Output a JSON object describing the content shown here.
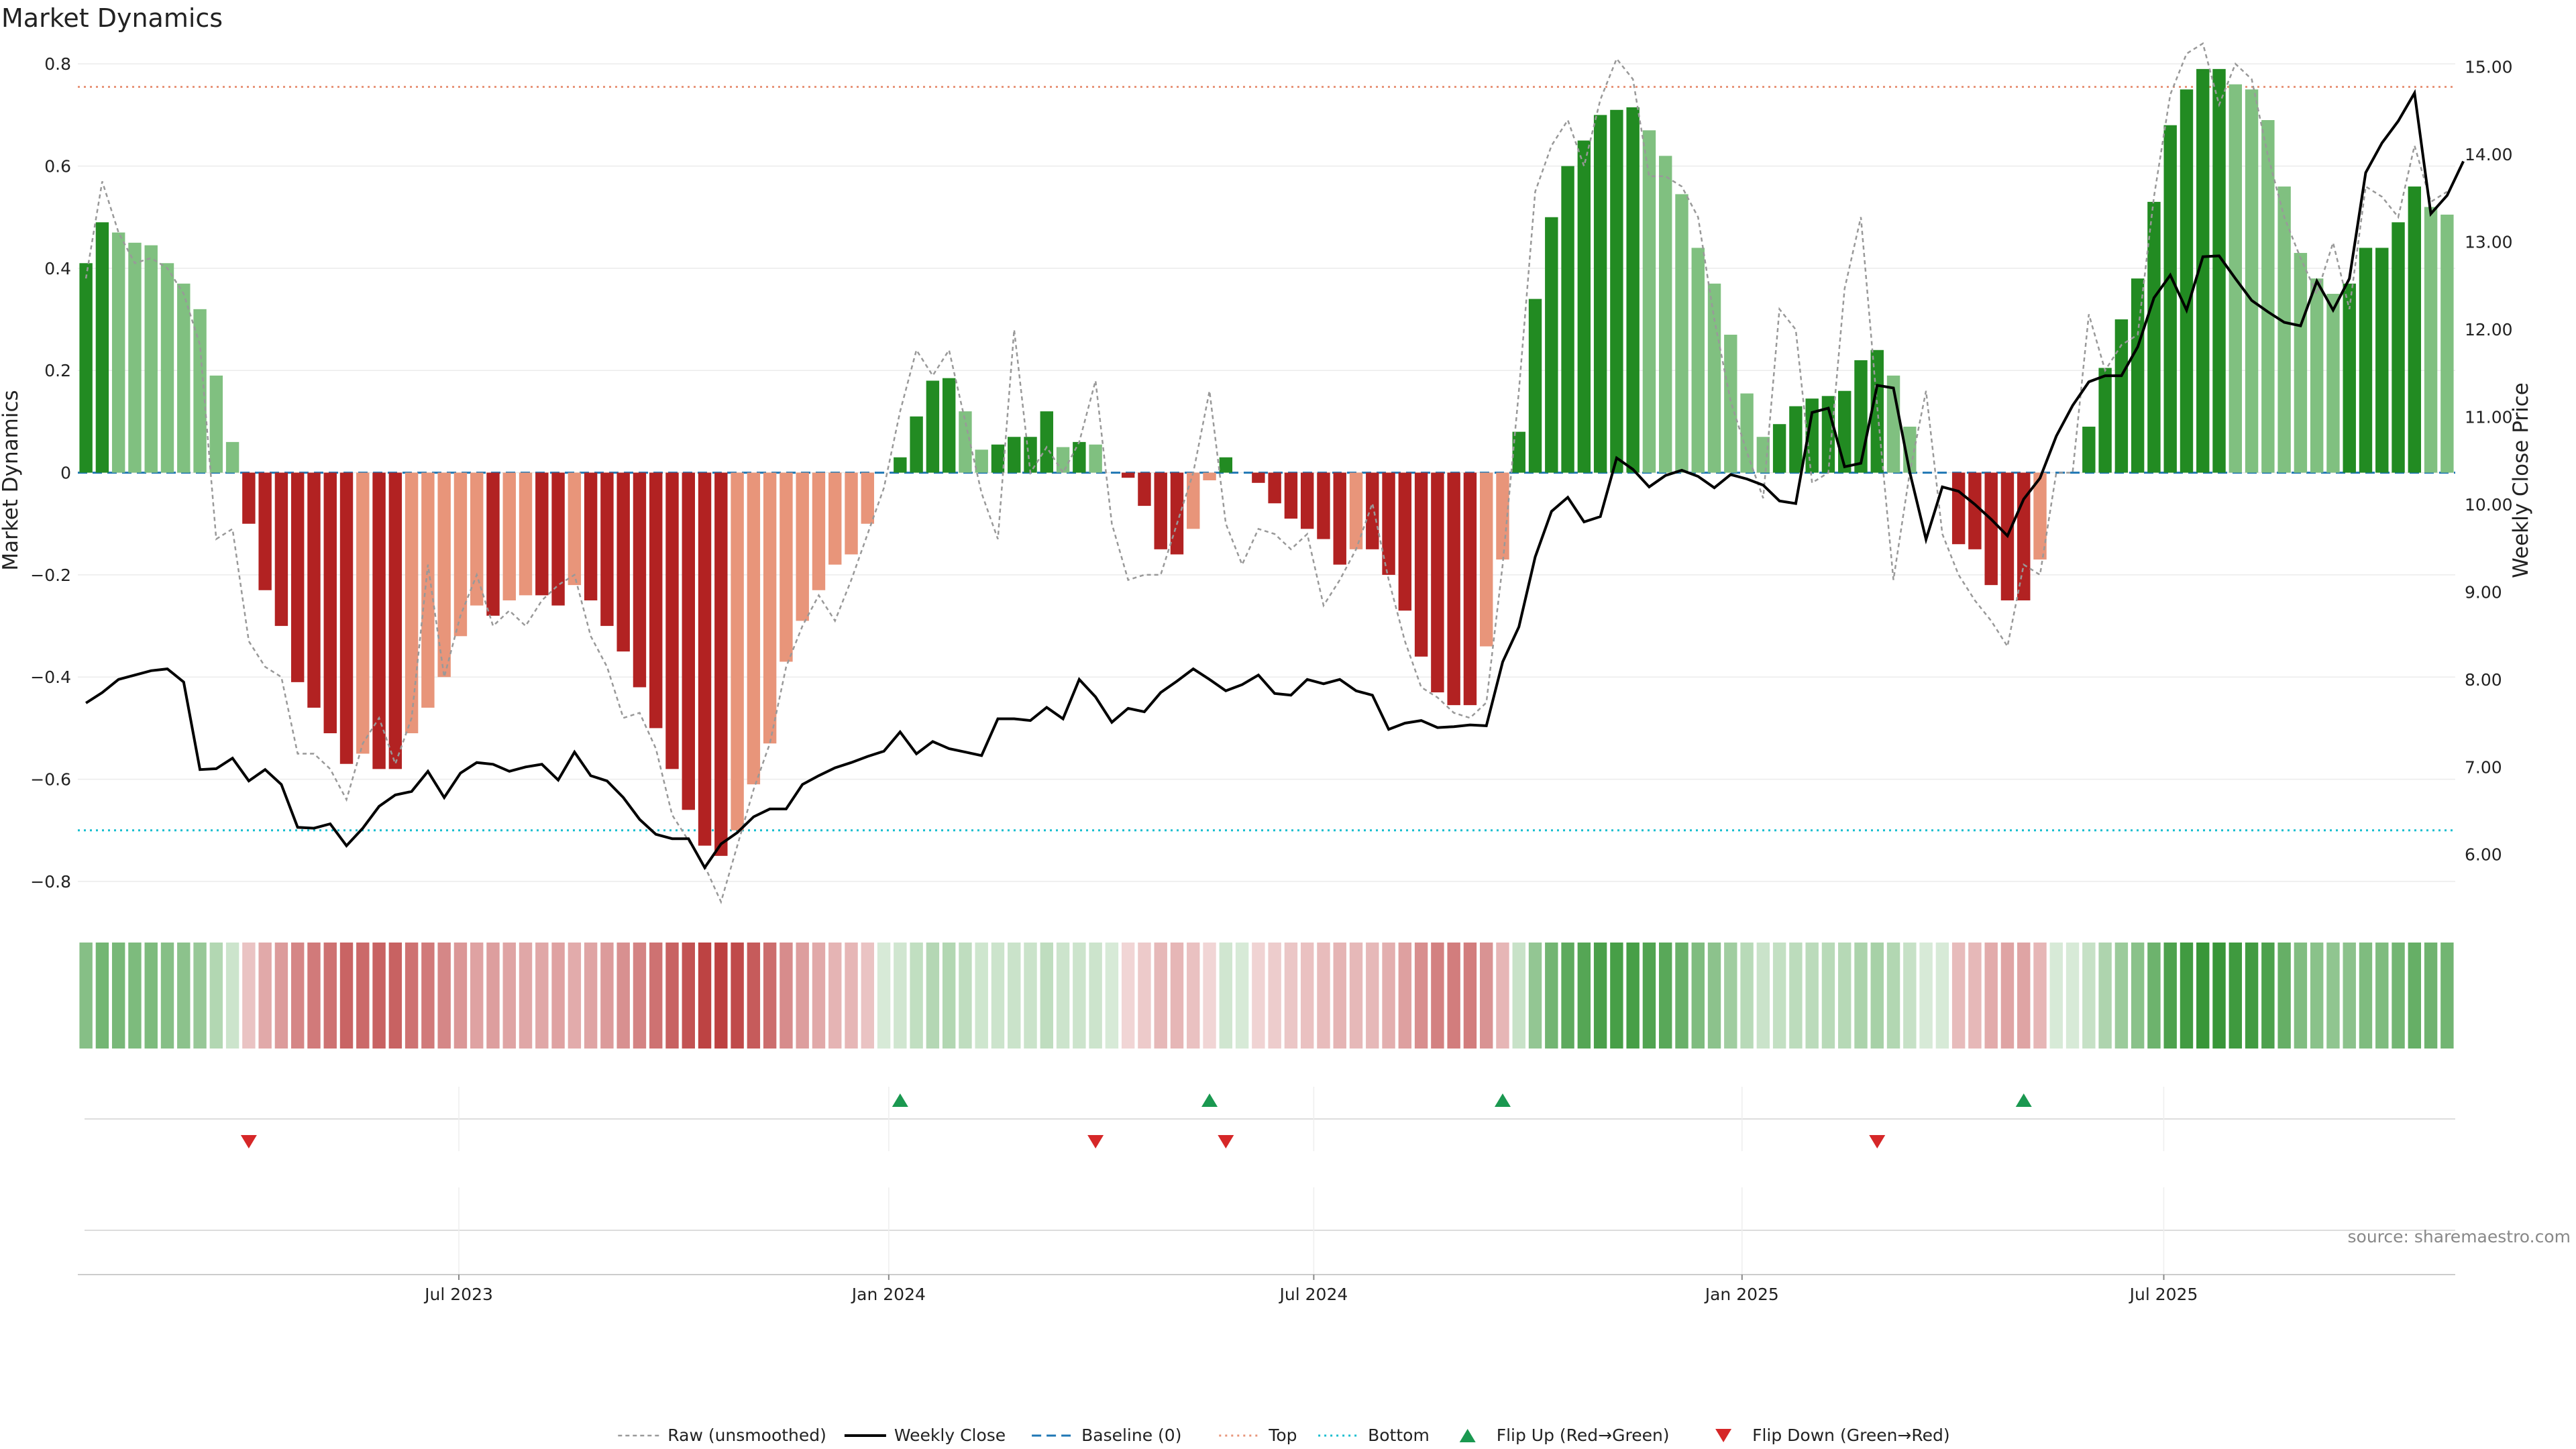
{
  "title": "Market Dynamics",
  "source": "source: sharemaestro.com",
  "colors": {
    "pos_strong": "#228B22",
    "pos_weak": "#80C080",
    "neg_strong": "#B22222",
    "neg_weak": "#E8957A",
    "raw": "#999999",
    "close": "#000000",
    "baseline": "#1f77b4",
    "top": "#e8957a",
    "bottom": "#17becf",
    "flip_up": "#1a9850",
    "flip_down": "#d62728"
  },
  "chart_data": {
    "type": "bar+line",
    "start_date": "2023-01-02",
    "weeks": 146,
    "ylabel_left": "Market Dynamics",
    "ylabel_right": "Weekly Close Price",
    "ylim_left": [
      -0.85,
      0.82
    ],
    "ylim_right": [
      5.4,
      15.15
    ],
    "yticks_left": [
      {
        "v": 0.8,
        "label": "0.8"
      },
      {
        "v": 0.6,
        "label": "0.6"
      },
      {
        "v": 0.4,
        "label": "0.4"
      },
      {
        "v": 0.2,
        "label": "0.2"
      },
      {
        "v": 0,
        "label": "0"
      },
      {
        "v": -0.2,
        "label": "−0.2"
      },
      {
        "v": -0.4,
        "label": "−0.4"
      },
      {
        "v": -0.6,
        "label": "−0.6"
      },
      {
        "v": -0.8,
        "label": "−0.8"
      }
    ],
    "yticks_right": [
      {
        "v": 15,
        "label": "15.00"
      },
      {
        "v": 14,
        "label": "14.00"
      },
      {
        "v": 13,
        "label": "13.00"
      },
      {
        "v": 12,
        "label": "12.00"
      },
      {
        "v": 11,
        "label": "11.00"
      },
      {
        "v": 10,
        "label": "10.00"
      },
      {
        "v": 9,
        "label": "9.00"
      },
      {
        "v": 8,
        "label": "8.00"
      },
      {
        "v": 7,
        "label": "7.00"
      },
      {
        "v": 6,
        "label": "6.00"
      }
    ],
    "xticks": [
      {
        "week": 22.9,
        "label": "Jul 2023"
      },
      {
        "week": 49.3,
        "label": "Jan 2024"
      },
      {
        "week": 75.4,
        "label": "Jul 2024"
      },
      {
        "week": 101.7,
        "label": "Jan 2025"
      },
      {
        "week": 127.6,
        "label": "Jul 2025"
      }
    ],
    "top_level": 0.755,
    "bottom_level": -0.7,
    "baseline": 0,
    "momentum": [
      0.41,
      0.49,
      0.47,
      0.45,
      0.445,
      0.41,
      0.37,
      0.32,
      0.19,
      0.06,
      -0.1,
      -0.23,
      -0.3,
      -0.41,
      -0.46,
      -0.51,
      -0.57,
      -0.55,
      -0.58,
      -0.58,
      -0.51,
      -0.46,
      -0.4,
      -0.32,
      -0.26,
      -0.28,
      -0.25,
      -0.24,
      -0.24,
      -0.26,
      -0.22,
      -0.25,
      -0.3,
      -0.35,
      -0.42,
      -0.5,
      -0.58,
      -0.66,
      -0.73,
      -0.75,
      -0.7,
      -0.61,
      -0.53,
      -0.37,
      -0.29,
      -0.23,
      -0.18,
      -0.16,
      -0.1,
      0.0,
      0.03,
      0.11,
      0.18,
      0.185,
      0.12,
      0.045,
      0.055,
      0.07,
      0.07,
      0.12,
      0.05,
      0.06,
      0.055,
      0.0,
      -0.01,
      -0.065,
      -0.15,
      -0.16,
      -0.11,
      -0.015,
      0.03,
      0.0,
      -0.02,
      -0.06,
      -0.09,
      -0.11,
      -0.13,
      -0.18,
      -0.15,
      -0.15,
      -0.2,
      -0.27,
      -0.36,
      -0.43,
      -0.455,
      -0.455,
      -0.34,
      -0.17,
      0.08,
      0.34,
      0.5,
      0.6,
      0.65,
      0.7,
      0.71,
      0.715,
      0.67,
      0.62,
      0.545,
      0.44,
      0.37,
      0.27,
      0.155,
      0.07,
      0.095,
      0.13,
      0.145,
      0.15,
      0.16,
      0.22,
      0.24,
      0.19,
      0.09,
      0.0,
      0.0,
      -0.14,
      -0.15,
      -0.22,
      -0.25,
      -0.25,
      -0.17,
      0.0,
      0.0,
      0.09,
      0.205,
      0.3,
      0.38,
      0.53,
      0.68,
      0.75,
      0.79,
      0.79,
      0.76,
      0.75,
      0.69,
      0.56,
      0.43,
      0.38,
      0.35,
      0.37,
      0.44,
      0.44,
      0.49,
      0.56,
      0.52,
      0.505
    ],
    "raw": [
      0.38,
      0.57,
      0.47,
      0.41,
      0.42,
      0.4,
      0.35,
      0.25,
      -0.13,
      -0.11,
      -0.33,
      -0.38,
      -0.4,
      -0.55,
      -0.55,
      -0.58,
      -0.64,
      -0.53,
      -0.48,
      -0.57,
      -0.48,
      -0.18,
      -0.4,
      -0.28,
      -0.2,
      -0.3,
      -0.27,
      -0.3,
      -0.25,
      -0.22,
      -0.2,
      -0.32,
      -0.38,
      -0.48,
      -0.47,
      -0.54,
      -0.67,
      -0.72,
      -0.77,
      -0.84,
      -0.73,
      -0.62,
      -0.53,
      -0.38,
      -0.3,
      -0.24,
      -0.29,
      -0.21,
      -0.12,
      -0.03,
      0.12,
      0.24,
      0.19,
      0.24,
      0.1,
      -0.04,
      -0.13,
      0.28,
      0.0,
      0.05,
      0.0,
      0.06,
      0.18,
      -0.1,
      -0.21,
      -0.2,
      -0.2,
      -0.1,
      0.0,
      0.16,
      -0.1,
      -0.18,
      -0.11,
      -0.12,
      -0.15,
      -0.12,
      -0.26,
      -0.21,
      -0.15,
      -0.06,
      -0.21,
      -0.33,
      -0.42,
      -0.44,
      -0.47,
      -0.48,
      -0.45,
      -0.18,
      0.16,
      0.55,
      0.64,
      0.69,
      0.6,
      0.73,
      0.81,
      0.77,
      0.58,
      0.58,
      0.56,
      0.5,
      0.3,
      0.14,
      0.04,
      -0.05,
      0.32,
      0.28,
      -0.02,
      0.0,
      0.36,
      0.5,
      0.13,
      -0.21,
      0.0,
      0.16,
      -0.12,
      -0.2,
      -0.25,
      -0.29,
      -0.34,
      -0.18,
      -0.2,
      0.0,
      0.0,
      0.31,
      0.2,
      0.25,
      0.27,
      0.54,
      0.74,
      0.82,
      0.84,
      0.72,
      0.8,
      0.77,
      0.62,
      0.5,
      0.42,
      0.35,
      0.45,
      0.32,
      0.56,
      0.54,
      0.5,
      0.64,
      0.53,
      0.55
    ],
    "close": [
      7.73,
      7.85,
      8.0,
      8.05,
      8.1,
      8.12,
      7.97,
      6.97,
      6.98,
      7.1,
      6.84,
      6.97,
      6.8,
      6.31,
      6.3,
      6.35,
      6.1,
      6.3,
      6.55,
      6.68,
      6.72,
      6.95,
      6.65,
      6.93,
      7.05,
      7.03,
      6.95,
      7.0,
      7.03,
      6.85,
      7.17,
      6.9,
      6.84,
      6.65,
      6.4,
      6.23,
      6.18,
      6.18,
      5.85,
      6.12,
      6.25,
      6.43,
      6.52,
      6.52,
      6.8,
      6.9,
      6.99,
      7.05,
      7.12,
      7.18,
      7.4,
      7.15,
      7.29,
      7.21,
      7.17,
      7.13,
      7.55,
      7.55,
      7.53,
      7.68,
      7.55,
      8.0,
      7.8,
      7.51,
      7.67,
      7.63,
      7.85,
      7.98,
      8.12,
      8.0,
      7.87,
      7.94,
      8.05,
      7.84,
      7.82,
      8.0,
      7.95,
      8.0,
      7.87,
      7.82,
      7.43,
      7.5,
      7.53,
      7.45,
      7.46,
      7.48,
      7.47,
      8.2,
      8.6,
      9.4,
      9.92,
      10.08,
      9.8,
      9.86,
      10.53,
      10.4,
      10.2,
      10.33,
      10.39,
      10.32,
      10.19,
      10.34,
      10.29,
      10.22,
      10.04,
      10.01,
      11.05,
      11.1,
      10.43,
      10.47,
      11.36,
      11.33,
      10.37,
      9.6,
      10.2,
      10.15,
      10.0,
      9.83,
      9.64,
      10.06,
      10.3,
      10.78,
      11.13,
      11.4,
      11.47,
      11.47,
      11.8,
      12.36,
      12.62,
      12.22,
      12.83,
      12.84,
      12.58,
      12.33,
      12.2,
      12.08,
      12.04,
      12.55,
      12.22,
      12.58,
      13.79,
      14.13,
      14.38,
      14.7,
      13.32,
      13.53,
      13.92
    ],
    "flip_up_weeks": [
      50,
      69,
      87,
      119
    ],
    "flip_down_weeks": [
      10,
      62,
      70,
      110
    ],
    "legend": [
      {
        "key": "raw",
        "label": "Raw (unsmoothed)"
      },
      {
        "key": "close",
        "label": "Weekly Close"
      },
      {
        "key": "baseline",
        "label": "Baseline (0)"
      },
      {
        "key": "top",
        "label": "Top"
      },
      {
        "key": "bottom",
        "label": "Bottom"
      },
      {
        "key": "flip_up",
        "label": "Flip Up (Red→Green)"
      },
      {
        "key": "flip_down",
        "label": "Flip Down (Green→Red)"
      }
    ]
  }
}
